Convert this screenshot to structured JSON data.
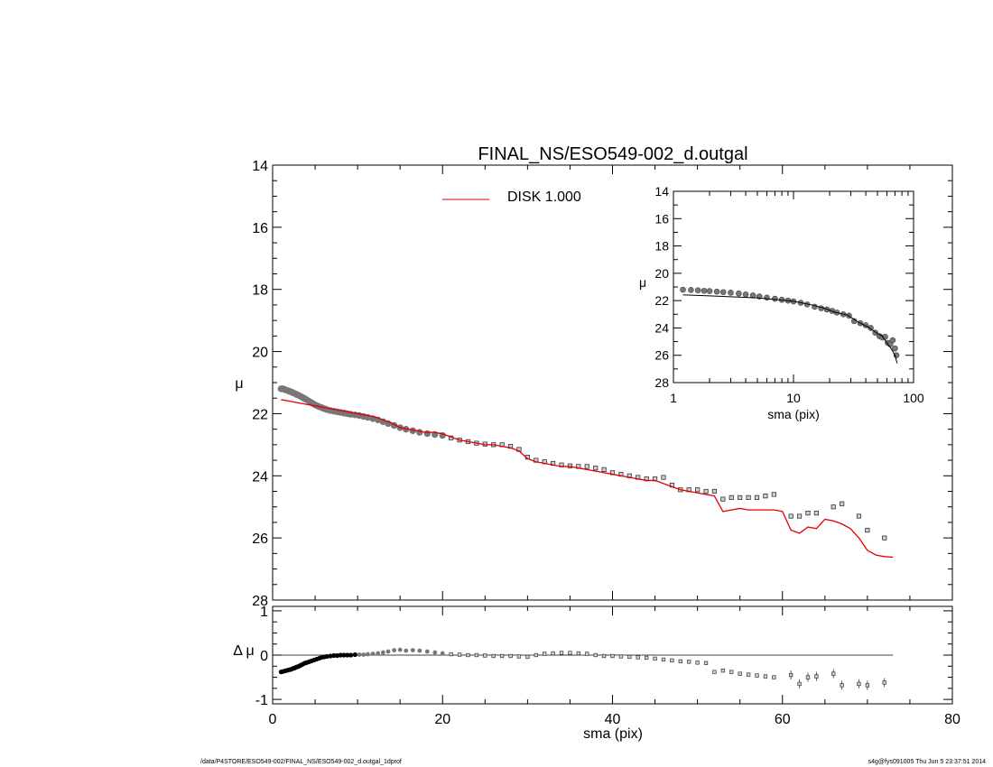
{
  "title": "FINAL_NS/ESO549-002_d.outgal",
  "footer": {
    "left": "/data/P4STORE/ESO549-002/FINAL_NS/ESO549-002_d.outgal_1dprof",
    "right": "s4g@fys091005  Thu Jun  5 23:37:51 2014"
  },
  "colors": {
    "model": "#e00000",
    "data": "#777777",
    "axis": "#000000"
  },
  "chart_data": [
    {
      "panel": "main",
      "type": "line",
      "ylabel": "μ",
      "xlim": [
        0,
        80
      ],
      "ylim": [
        28,
        14
      ],
      "y_inverted": true,
      "yticks": [
        "14",
        "16",
        "18",
        "20",
        "22",
        "24",
        "26",
        "28"
      ],
      "legend": {
        "label": "DISK  1.000",
        "placement": "top-center",
        "color": "#e00000"
      },
      "series": [
        {
          "name": "DISK  1.000",
          "style": "line",
          "x": [
            1,
            2,
            3,
            4,
            5,
            6,
            7,
            8,
            9,
            10,
            11,
            12,
            13,
            14,
            15,
            16,
            17,
            18,
            19,
            20,
            21,
            22,
            23,
            24,
            25,
            26,
            27,
            28,
            29,
            30,
            31,
            32,
            33,
            34,
            35,
            36,
            37,
            38,
            39,
            40,
            41,
            42,
            43,
            44,
            45,
            46,
            47,
            48,
            49,
            50,
            51,
            52,
            53,
            54,
            55,
            56,
            57,
            58,
            59,
            60,
            61,
            62,
            63,
            64,
            65,
            66,
            67,
            68,
            69,
            70,
            71,
            72,
            73
          ],
          "y": [
            21.55,
            21.6,
            21.65,
            21.7,
            21.75,
            21.8,
            21.85,
            21.9,
            21.95,
            22.0,
            22.05,
            22.1,
            22.2,
            22.3,
            22.45,
            22.5,
            22.55,
            22.6,
            22.6,
            22.65,
            22.75,
            22.85,
            22.9,
            22.95,
            23.0,
            23.0,
            23.05,
            23.1,
            23.2,
            23.45,
            23.55,
            23.6,
            23.65,
            23.7,
            23.7,
            23.75,
            23.8,
            23.85,
            23.9,
            23.95,
            24.0,
            24.05,
            24.1,
            24.15,
            24.15,
            24.25,
            24.35,
            24.45,
            24.5,
            24.55,
            24.6,
            24.65,
            25.15,
            25.1,
            25.05,
            25.1,
            25.1,
            25.1,
            25.1,
            25.15,
            25.75,
            25.85,
            25.65,
            25.7,
            25.4,
            25.45,
            25.55,
            25.7,
            26.0,
            26.4,
            26.55,
            26.6,
            26.62
          ]
        },
        {
          "name": "",
          "style": "markers",
          "x": [
            1.0,
            1.2,
            1.4,
            1.6,
            1.8,
            2.0,
            2.2,
            2.4,
            2.6,
            2.8,
            3.0,
            3.2,
            3.4,
            3.6,
            3.8,
            4.0,
            4.3,
            4.6,
            4.9,
            5.2,
            5.5,
            5.8,
            6.1,
            6.4,
            6.8,
            7.2,
            7.6,
            8.0,
            8.4,
            8.8,
            9.2,
            9.7,
            10.2,
            10.7,
            11.2,
            11.8,
            12.4,
            13.0,
            13.6,
            14.3,
            15.0,
            15.7,
            16.5,
            17.3,
            18.2,
            19.1,
            20.0,
            21.0,
            22.0,
            23.0,
            24.0,
            25.0,
            26.0,
            27.0,
            28.0,
            29.0,
            30.0,
            31.0,
            32.0,
            33.0,
            34.0,
            35.0,
            36.0,
            37.0,
            38.0,
            39.0,
            40.0,
            41.0,
            42.0,
            43.0,
            44.0,
            45.0,
            46.0,
            47.0,
            48.0,
            49.0,
            50.0,
            51.0,
            52.0,
            53.0,
            54.0,
            55.0,
            56.0,
            57.0,
            58.0,
            59.0,
            61.0,
            62.0,
            63.0,
            64.0,
            66.0,
            67.0,
            69.0,
            70.0,
            72.0
          ],
          "y": [
            21.2,
            21.2,
            21.22,
            21.24,
            21.26,
            21.28,
            21.3,
            21.33,
            21.35,
            21.38,
            21.4,
            21.43,
            21.46,
            21.49,
            21.52,
            21.55,
            21.6,
            21.65,
            21.7,
            21.74,
            21.78,
            21.81,
            21.84,
            21.87,
            21.9,
            21.92,
            21.94,
            21.96,
            21.98,
            22.0,
            22.02,
            22.04,
            22.06,
            22.09,
            22.12,
            22.16,
            22.2,
            22.26,
            22.32,
            22.38,
            22.45,
            22.5,
            22.55,
            22.6,
            22.64,
            22.67,
            22.7,
            22.78,
            22.85,
            22.9,
            22.95,
            22.98,
            23.0,
            23.0,
            23.05,
            23.15,
            23.4,
            23.5,
            23.55,
            23.6,
            23.65,
            23.68,
            23.7,
            23.7,
            23.75,
            23.8,
            23.9,
            23.95,
            24.0,
            24.05,
            24.1,
            24.1,
            24.05,
            24.3,
            24.45,
            24.45,
            24.45,
            24.5,
            24.5,
            24.75,
            24.7,
            24.7,
            24.7,
            24.7,
            24.65,
            24.6,
            25.3,
            25.3,
            25.2,
            25.2,
            25.0,
            24.9,
            25.3,
            25.75,
            26.0
          ]
        }
      ]
    },
    {
      "panel": "residual",
      "type": "scatter",
      "ylabel": "Δ μ",
      "xlabel": "sma (pix)",
      "xlim": [
        0,
        80
      ],
      "ylim": [
        -1.1,
        1.1
      ],
      "xticks": [
        "0",
        "20",
        "40",
        "60",
        "80"
      ],
      "yticks": [
        "1",
        "0",
        "-1"
      ],
      "zero_line_x": [
        1,
        73
      ],
      "series": [
        {
          "name": "",
          "x": [
            1.0,
            1.2,
            1.4,
            1.6,
            1.8,
            2.0,
            2.2,
            2.4,
            2.6,
            2.8,
            3.0,
            3.2,
            3.4,
            3.6,
            3.8,
            4.0,
            4.3,
            4.6,
            4.9,
            5.2,
            5.5,
            5.8,
            6.1,
            6.4,
            6.8,
            7.2,
            7.6,
            8.0,
            8.4,
            8.8,
            9.2,
            9.7,
            10.2,
            10.7,
            11.2,
            11.8,
            12.4,
            13.0,
            13.6,
            14.3,
            15.0,
            15.7,
            16.5,
            17.3,
            18.2,
            19.1,
            20.0,
            21.0,
            22.0,
            23.0,
            24.0,
            25.0,
            26.0,
            27.0,
            28.0,
            29.0,
            30.0,
            31.0,
            32.0,
            33.0,
            34.0,
            35.0,
            36.0,
            37.0,
            38.0,
            39.0,
            40.0,
            41.0,
            42.0,
            43.0,
            44.0,
            45.0,
            46.0,
            47.0,
            48.0,
            49.0,
            50.0,
            51.0,
            52.0,
            53.0,
            54.0,
            55.0,
            56.0,
            57.0,
            58.0,
            59.0,
            61.0,
            62.0,
            63.0,
            64.0,
            66.0,
            67.0,
            69.0,
            70.0,
            72.0
          ],
          "y": [
            -0.38,
            -0.37,
            -0.36,
            -0.35,
            -0.34,
            -0.33,
            -0.32,
            -0.3,
            -0.29,
            -0.27,
            -0.26,
            -0.24,
            -0.22,
            -0.2,
            -0.18,
            -0.17,
            -0.15,
            -0.13,
            -0.11,
            -0.09,
            -0.07,
            -0.05,
            -0.04,
            -0.03,
            -0.02,
            -0.01,
            -0.01,
            0.0,
            0.0,
            0.0,
            0.0,
            0.01,
            0.01,
            0.01,
            0.02,
            0.03,
            0.04,
            0.06,
            0.08,
            0.11,
            0.12,
            0.1,
            0.11,
            0.1,
            0.08,
            0.06,
            0.04,
            0.02,
            0.01,
            0.0,
            0.0,
            -0.01,
            -0.02,
            -0.02,
            -0.02,
            -0.03,
            -0.04,
            0.0,
            0.03,
            0.04,
            0.05,
            0.05,
            0.04,
            0.03,
            0.0,
            -0.02,
            -0.02,
            -0.03,
            -0.04,
            -0.05,
            -0.06,
            -0.08,
            -0.1,
            -0.12,
            -0.14,
            -0.15,
            -0.17,
            -0.18,
            -0.38,
            -0.35,
            -0.38,
            -0.42,
            -0.44,
            -0.46,
            -0.48,
            -0.5,
            -0.45,
            -0.65,
            -0.5,
            -0.48,
            -0.42,
            -0.68,
            -0.65,
            -0.68,
            -0.62
          ]
        }
      ]
    },
    {
      "panel": "inset",
      "type": "line",
      "ylabel": "μ",
      "xlabel": "sma (pix)",
      "xscale": "log",
      "xlim": [
        1,
        100
      ],
      "ylim": [
        28,
        14
      ],
      "y_inverted": true,
      "xticks": [
        "1",
        "10",
        "100"
      ],
      "yticks": [
        "14",
        "16",
        "18",
        "20",
        "22",
        "24",
        "26",
        "28"
      ],
      "series": [
        {
          "name": "",
          "style": "line",
          "x": [
            1.2,
            2,
            3,
            5,
            7,
            10,
            14,
            18,
            22,
            28,
            35,
            42,
            50,
            55,
            60,
            65,
            70,
            73
          ],
          "y": [
            21.58,
            21.65,
            21.72,
            21.8,
            21.92,
            22.05,
            22.3,
            22.55,
            22.85,
            23.05,
            23.6,
            23.95,
            24.4,
            24.6,
            25.1,
            25.5,
            26.0,
            26.6
          ]
        },
        {
          "name": "",
          "style": "markers",
          "x": [
            1.2,
            1.4,
            1.6,
            1.8,
            2.0,
            2.3,
            2.6,
            3.0,
            3.5,
            4.0,
            4.6,
            5.2,
            6.0,
            7.0,
            8.0,
            9.0,
            10.0,
            11.5,
            13.0,
            15.0,
            17.0,
            19.0,
            21.0,
            23.0,
            26.0,
            29.0,
            32.0,
            36.0,
            40.0,
            44.0,
            48.0,
            52.0,
            55.0,
            58.0,
            61.0,
            64.0,
            67.0,
            70.0,
            72.0
          ],
          "y": [
            21.2,
            21.22,
            21.25,
            21.28,
            21.3,
            21.34,
            21.38,
            21.42,
            21.48,
            21.55,
            21.62,
            21.7,
            21.78,
            21.86,
            21.94,
            22.0,
            22.06,
            22.16,
            22.28,
            22.45,
            22.56,
            22.65,
            22.75,
            22.88,
            23.0,
            23.1,
            23.5,
            23.65,
            23.8,
            24.0,
            24.35,
            24.6,
            24.7,
            24.65,
            25.1,
            25.2,
            24.9,
            25.5,
            26.0
          ]
        }
      ]
    }
  ]
}
